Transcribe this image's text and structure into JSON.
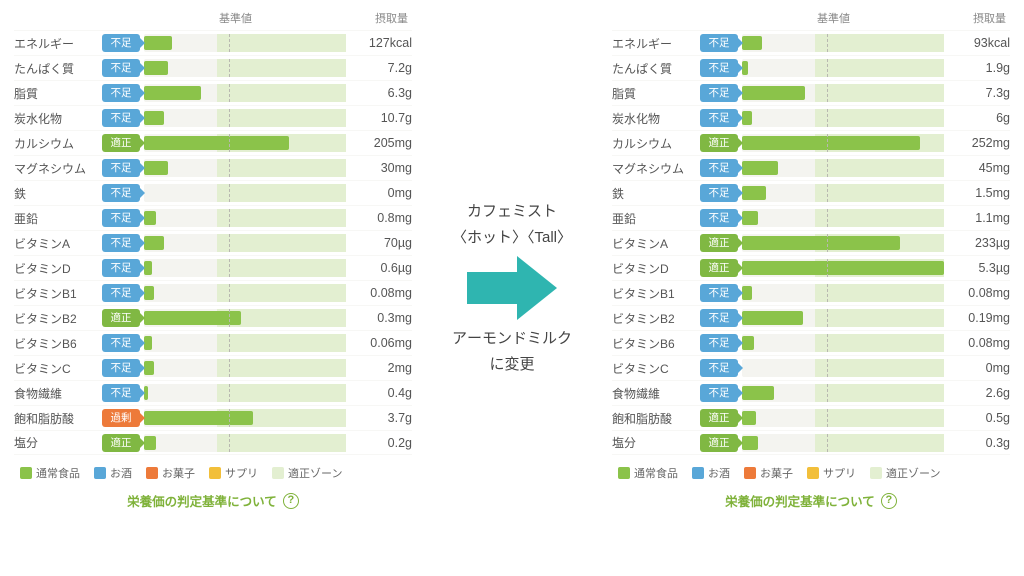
{
  "colors": {
    "badge_insufficient": "#59a7d8",
    "badge_adequate": "#80b843",
    "badge_excess": "#ed7a3a",
    "bar_fill": "#8bc34a",
    "bar_track": "#f4f4f0",
    "zone": "#e3efd1",
    "ref_line": "#b8b8b0",
    "text": "#555555",
    "link_green": "#7fb23a",
    "arrow": "#2fb5b0",
    "legend_food": "#8bc34a",
    "legend_alcohol": "#59a7d8",
    "legend_snack": "#ed7a3a",
    "legend_suppl": "#f2bf3a",
    "legend_zone": "#e3efd1"
  },
  "headers": {
    "ref": "基準値",
    "amount": "摂取量"
  },
  "badge_labels": {
    "insufficient": "不足",
    "adequate": "適正",
    "excess": "過剰"
  },
  "legend": {
    "food": "通常食品",
    "alcohol": "お酒",
    "snack": "お菓子",
    "suppl": "サプリ",
    "zone": "適正ゾーン"
  },
  "footer_link": "栄養価の判定基準について",
  "center": {
    "line1": "カフェミスト",
    "line2": "〈ホット〉〈Tall〉",
    "line3": "アーモンドミルク",
    "line4": "に変更"
  },
  "bar_geometry": {
    "ref_pct": 42,
    "zone_start_pct": 36,
    "zone_end_pct": 100
  },
  "left": {
    "rows": [
      {
        "name": "エネルギー",
        "status": "insufficient",
        "fill_pct": 14,
        "amount": "127kcal"
      },
      {
        "name": "たんぱく質",
        "status": "insufficient",
        "fill_pct": 12,
        "amount": "7.2g"
      },
      {
        "name": "脂質",
        "status": "insufficient",
        "fill_pct": 28,
        "amount": "6.3g"
      },
      {
        "name": "炭水化物",
        "status": "insufficient",
        "fill_pct": 10,
        "amount": "10.7g"
      },
      {
        "name": "カルシウム",
        "status": "adequate",
        "fill_pct": 72,
        "amount": "205mg"
      },
      {
        "name": "マグネシウム",
        "status": "insufficient",
        "fill_pct": 12,
        "amount": "30mg"
      },
      {
        "name": "鉄",
        "status": "insufficient",
        "fill_pct": 0,
        "amount": "0mg"
      },
      {
        "name": "亜鉛",
        "status": "insufficient",
        "fill_pct": 6,
        "amount": "0.8mg"
      },
      {
        "name": "ビタミンA",
        "status": "insufficient",
        "fill_pct": 10,
        "amount": "70µg"
      },
      {
        "name": "ビタミンD",
        "status": "insufficient",
        "fill_pct": 4,
        "amount": "0.6µg"
      },
      {
        "name": "ビタミンB1",
        "status": "insufficient",
        "fill_pct": 5,
        "amount": "0.08mg"
      },
      {
        "name": "ビタミンB2",
        "status": "adequate",
        "fill_pct": 48,
        "amount": "0.3mg"
      },
      {
        "name": "ビタミンB6",
        "status": "insufficient",
        "fill_pct": 4,
        "amount": "0.06mg"
      },
      {
        "name": "ビタミンC",
        "status": "insufficient",
        "fill_pct": 5,
        "amount": "2mg"
      },
      {
        "name": "食物繊維",
        "status": "insufficient",
        "fill_pct": 2,
        "amount": "0.4g"
      },
      {
        "name": "飽和脂肪酸",
        "status": "excess",
        "fill_pct": 54,
        "amount": "3.7g"
      },
      {
        "name": "塩分",
        "status": "adequate",
        "fill_pct": 6,
        "amount": "0.2g"
      }
    ]
  },
  "right": {
    "rows": [
      {
        "name": "エネルギー",
        "status": "insufficient",
        "fill_pct": 10,
        "amount": "93kcal"
      },
      {
        "name": "たんぱく質",
        "status": "insufficient",
        "fill_pct": 3,
        "amount": "1.9g"
      },
      {
        "name": "脂質",
        "status": "insufficient",
        "fill_pct": 31,
        "amount": "7.3g"
      },
      {
        "name": "炭水化物",
        "status": "insufficient",
        "fill_pct": 5,
        "amount": "6g"
      },
      {
        "name": "カルシウム",
        "status": "adequate",
        "fill_pct": 88,
        "amount": "252mg"
      },
      {
        "name": "マグネシウム",
        "status": "insufficient",
        "fill_pct": 18,
        "amount": "45mg"
      },
      {
        "name": "鉄",
        "status": "insufficient",
        "fill_pct": 12,
        "amount": "1.5mg"
      },
      {
        "name": "亜鉛",
        "status": "insufficient",
        "fill_pct": 8,
        "amount": "1.1mg"
      },
      {
        "name": "ビタミンA",
        "status": "adequate",
        "fill_pct": 78,
        "amount": "233µg"
      },
      {
        "name": "ビタミンD",
        "status": "adequate",
        "fill_pct": 100,
        "amount": "5.3µg"
      },
      {
        "name": "ビタミンB1",
        "status": "insufficient",
        "fill_pct": 5,
        "amount": "0.08mg"
      },
      {
        "name": "ビタミンB2",
        "status": "insufficient",
        "fill_pct": 30,
        "amount": "0.19mg"
      },
      {
        "name": "ビタミンB6",
        "status": "insufficient",
        "fill_pct": 6,
        "amount": "0.08mg"
      },
      {
        "name": "ビタミンC",
        "status": "insufficient",
        "fill_pct": 0,
        "amount": "0mg"
      },
      {
        "name": "食物繊維",
        "status": "insufficient",
        "fill_pct": 16,
        "amount": "2.6g"
      },
      {
        "name": "飽和脂肪酸",
        "status": "adequate",
        "fill_pct": 7,
        "amount": "0.5g"
      },
      {
        "name": "塩分",
        "status": "adequate",
        "fill_pct": 8,
        "amount": "0.3g"
      }
    ]
  }
}
